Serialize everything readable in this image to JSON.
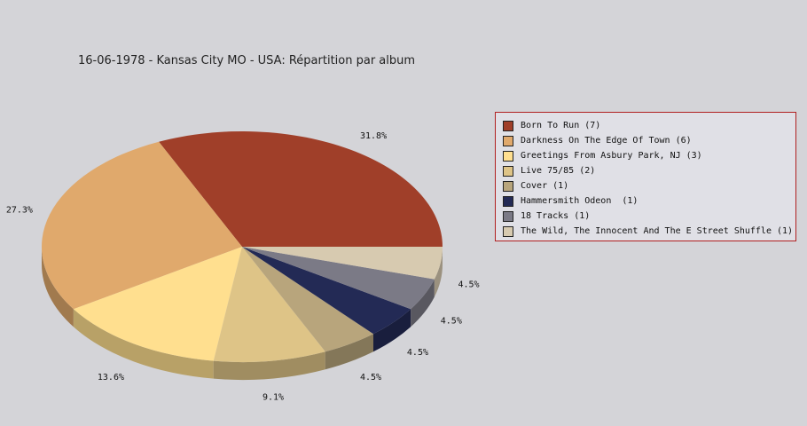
{
  "chart_data": {
    "type": "pie",
    "title": "16-06-1978 - Kansas City MO - USA:  Répartition par album",
    "legend_position": "right",
    "slices": [
      {
        "label": "Born To Run (7)",
        "value": 7,
        "percent_label": "31.8%",
        "color": "#a03f29"
      },
      {
        "label": "Darkness On The Edge Of Town (6)",
        "value": 6,
        "percent_label": "27.3%",
        "color": "#e0a96c"
      },
      {
        "label": "Greetings From Asbury Park, NJ (3)",
        "value": 3,
        "percent_label": "13.6%",
        "color": "#ffdf8f"
      },
      {
        "label": "Live 75/85 (2)",
        "value": 2,
        "percent_label": "9.1%",
        "color": "#dec487"
      },
      {
        "label": "Cover (1)",
        "value": 1,
        "percent_label": "4.5%",
        "color": "#b8a57c"
      },
      {
        "label": "Hammersmith Odeon  (1)",
        "value": 1,
        "percent_label": "4.5%",
        "color": "#232a55"
      },
      {
        "label": "18 Tracks (1)",
        "value": 1,
        "percent_label": "4.5%",
        "color": "#7b7a86"
      },
      {
        "label": "The Wild, The Innocent And The E Street Shuffle (1)",
        "value": 1,
        "percent_label": "4.5%",
        "color": "#d7cab0"
      }
    ]
  }
}
